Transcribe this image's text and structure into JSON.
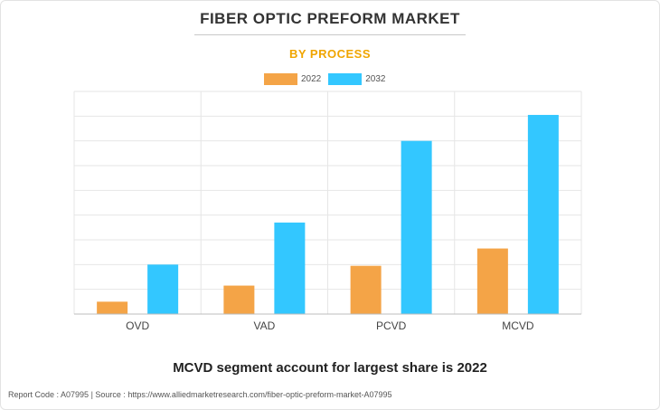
{
  "header": {
    "title": "FIBER OPTIC PREFORM MARKET",
    "subtitle": "BY PROCESS"
  },
  "colors": {
    "series_2022": "#f4a447",
    "series_2032": "#33c7ff",
    "title": "#333333",
    "subtitle": "#f0a500"
  },
  "chart_data": {
    "type": "bar",
    "categories": [
      "OVD",
      "VAD",
      "PCVD",
      "MCVD"
    ],
    "series": [
      {
        "name": "2022",
        "values": [
          0.5,
          1.15,
          1.95,
          2.65
        ]
      },
      {
        "name": "2032",
        "values": [
          2.0,
          3.7,
          7.0,
          8.05
        ]
      }
    ],
    "ylim": [
      0,
      9
    ],
    "grid": true,
    "legend_position": "top-center",
    "xlabel": "",
    "ylabel": ""
  },
  "insight": "MCVD segment account for largest share is 2022",
  "footer": "Report Code : A07995  |  Source : https://www.alliedmarketresearch.com/fiber-optic-preform-market-A07995"
}
